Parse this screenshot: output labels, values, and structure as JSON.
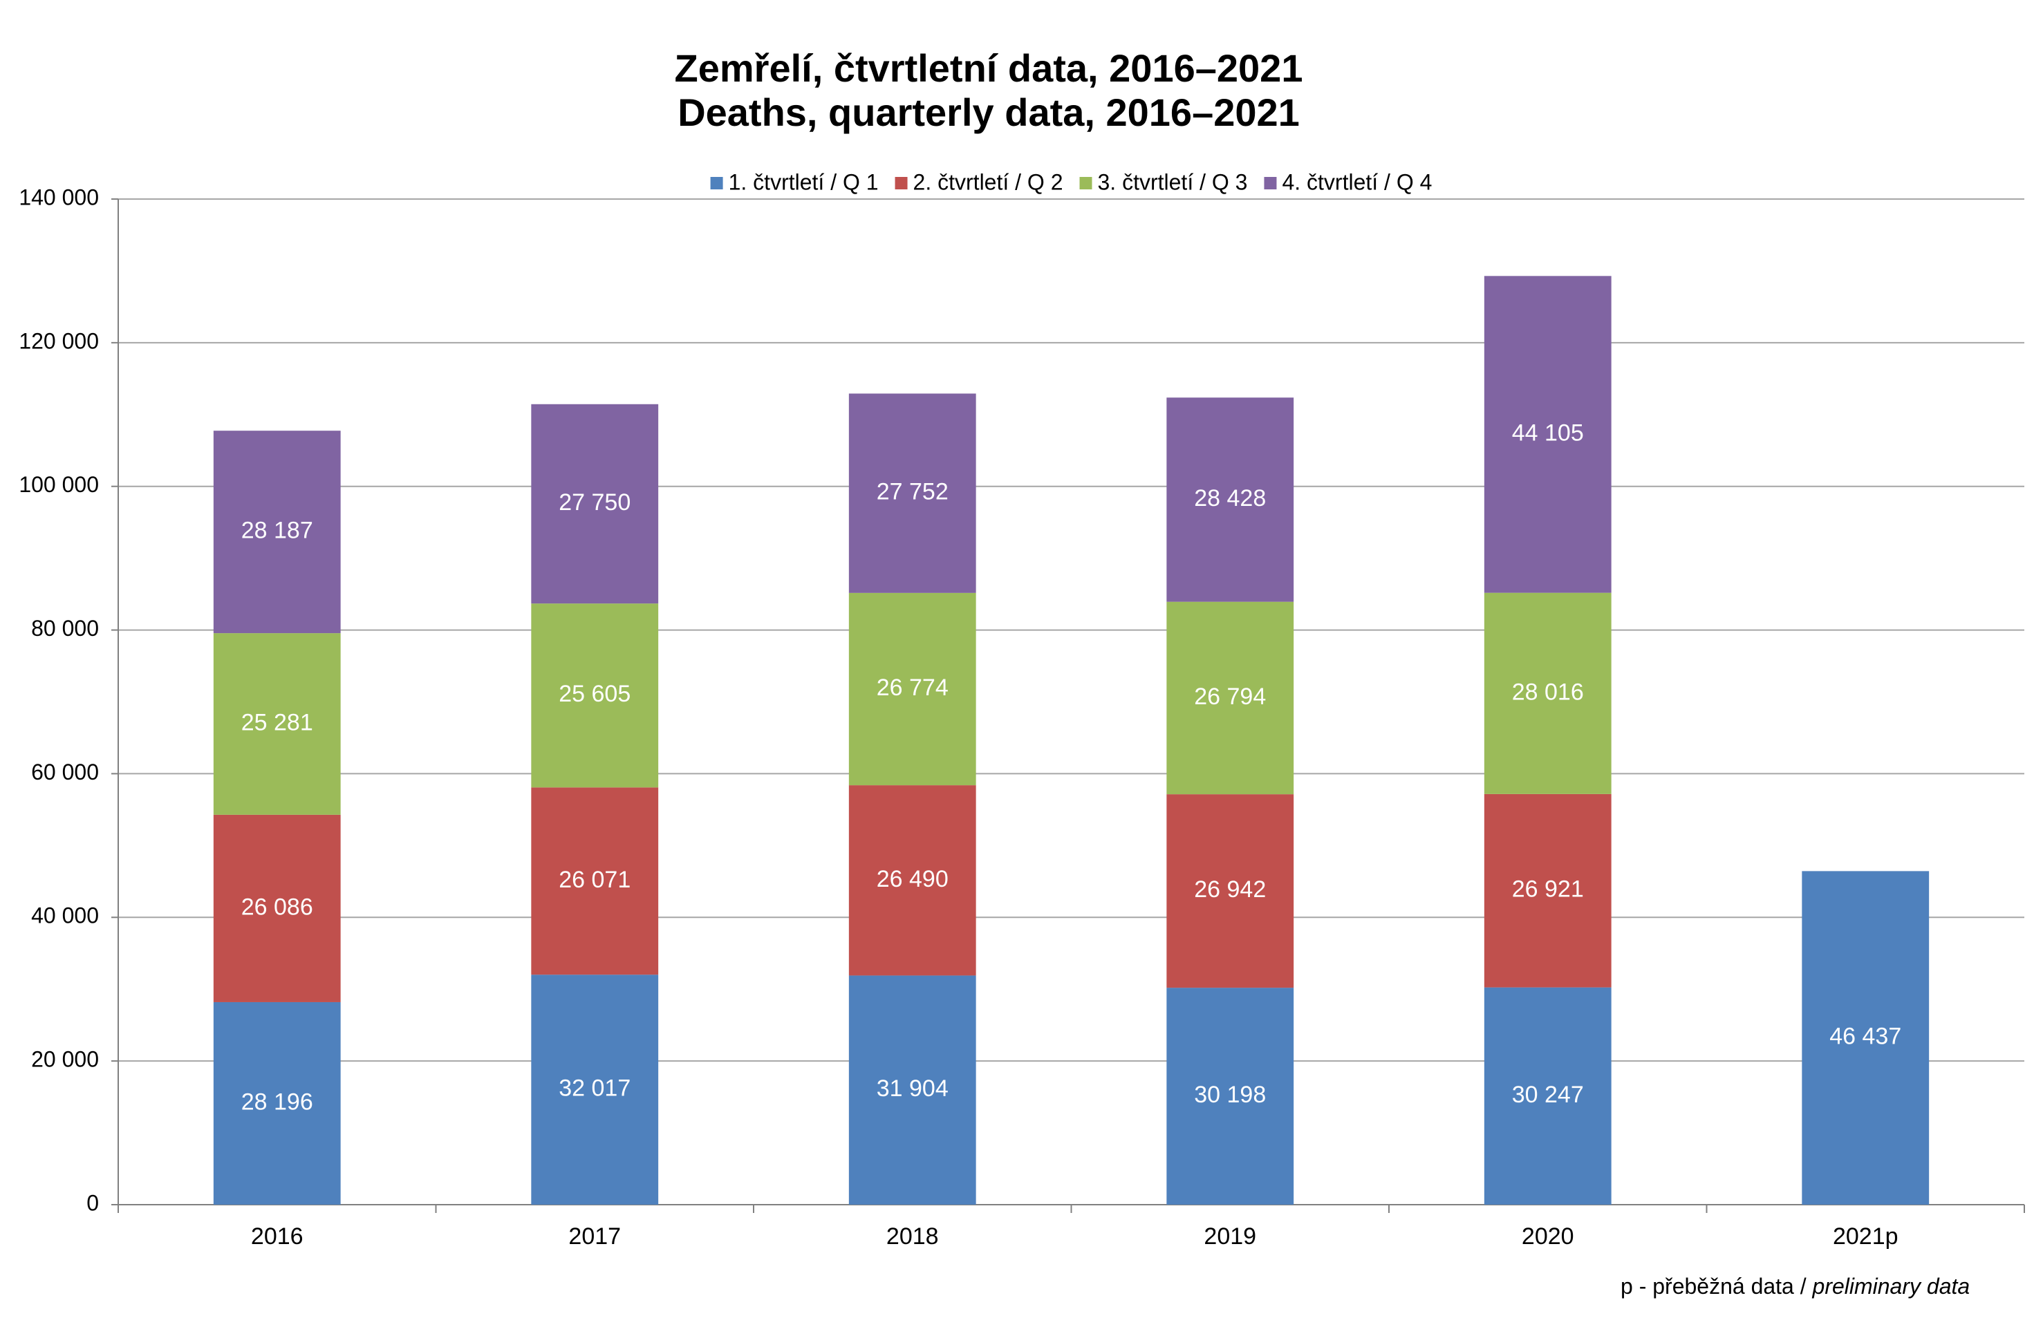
{
  "chart_data": {
    "type": "stacked_bar",
    "title": "Zemřelí, čtvrtletní data, 2016–2021",
    "subtitle": "Deaths, quarterly data, 2016–2021",
    "categories": [
      "2016",
      "2017",
      "2018",
      "2019",
      "2020",
      "2021p"
    ],
    "series": [
      {
        "name": "1. čtvrtletí / Q 1",
        "color": "#4f81bd",
        "values": [
          28196,
          32017,
          31904,
          30198,
          30247,
          46437
        ],
        "value_labels": [
          "28 196",
          "32 017",
          "31 904",
          "30 198",
          "30 247",
          "46 437"
        ]
      },
      {
        "name": "2. čtvrtletí / Q 2",
        "color": "#c0504d",
        "values": [
          26086,
          26071,
          26490,
          26942,
          26921,
          null
        ],
        "value_labels": [
          "26 086",
          "26 071",
          "26 490",
          "26 942",
          "26 921",
          null
        ]
      },
      {
        "name": "3. čtvrtletí / Q 3",
        "color": "#9bbb59",
        "values": [
          25281,
          25605,
          26774,
          26794,
          28016,
          null
        ],
        "value_labels": [
          "25 281",
          "25 605",
          "26 774",
          "26 794",
          "28 016",
          null
        ]
      },
      {
        "name": "4. čtvrtletí / Q 4",
        "color": "#8064a2",
        "values": [
          28187,
          27750,
          27752,
          28428,
          44105,
          null
        ],
        "value_labels": [
          "28 187",
          "27 750",
          "27 752",
          "28 428",
          "44 105",
          null
        ]
      }
    ],
    "ylim": [
      0,
      140000
    ],
    "yticks": [
      0,
      {
        "value": 20000,
        "label": "20 000"
      },
      {
        "value": 40000,
        "label": "40 000"
      },
      {
        "value": 60000,
        "label": "60 000"
      },
      {
        "value": 80000,
        "label": "80 000"
      },
      {
        "value": 100000,
        "label": "100 000"
      },
      {
        "value": 120000,
        "label": "120 000"
      },
      {
        "value": 140000,
        "label": "140 000"
      }
    ],
    "grid": true,
    "legend": "top",
    "footnote": "p - přeběžná data /",
    "footnote_italic": "preliminary data"
  }
}
